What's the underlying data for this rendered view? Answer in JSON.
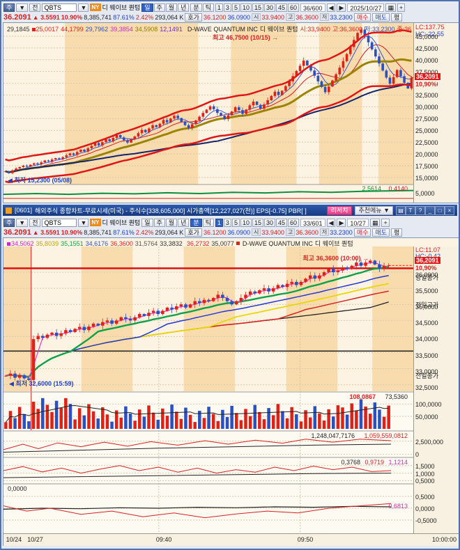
{
  "colors": {
    "up": "#dd2218",
    "down": "#2b50c0",
    "band": "#f8dcae",
    "base": "#fdf3e2",
    "axis_bg": "#f8f0e0"
  },
  "stock": {
    "code": "QBTS",
    "name_kr": "디 웨이브 퀀텀",
    "name_en": "D-WAVE QUANTUM INC",
    "exchange": "NY",
    "price": "36.2091",
    "arrow": "▲",
    "change": "3.5591",
    "pct": "10.90%",
    "volume": "8,385,741",
    "turnover": "87.61%",
    "rate2": "2.42%",
    "value": "293,064 K",
    "ask": "36.1200",
    "bid": "36.0900",
    "open": "33.9400",
    "high": "36.3600",
    "low": "33.2300"
  },
  "toolbar": {
    "left_btns": [
      "주",
      "▼",
      "전"
    ],
    "periods": [
      "일",
      "주",
      "월",
      "년"
    ],
    "mt": [
      "분",
      "틱"
    ],
    "intervals": [
      "1",
      "3",
      "5",
      "10",
      "15",
      "30",
      "45",
      "60"
    ],
    "hoga": "호가",
    "open_label": "시",
    "high_label": "고",
    "low_label": "저",
    "side_tabs": [
      "매수",
      "매도",
      "평"
    ],
    "top": {
      "count": "36/600",
      "date": "2025/10/27"
    },
    "bottom": {
      "count": "33/601",
      "date": "10/27"
    }
  },
  "titlebar": {
    "id": "[0601]",
    "title": "해외주식 종합차트-무료시세(미국) - 주식수[338,605,000] 시가총액[12,227,027(천)] EPS[-0.75] PBR[ ]",
    "research": "리서치",
    "menu": "추천메뉴",
    "menu_arrow": "▼",
    "icons": [
      "▤",
      "T",
      "?",
      "_",
      "□",
      "×"
    ]
  },
  "chart_data": {
    "daily": {
      "type": "candlestick",
      "header_vals": [
        {
          "t": "29,1845",
          "c": "#333333"
        },
        {
          "t": "25,0017",
          "c": "#dd2218",
          "sq": true
        },
        {
          "t": "44,1799",
          "c": "#dd2218"
        },
        {
          "t": "29,7962",
          "c": "#2b50c0"
        },
        {
          "t": "39,3854",
          "c": "#cc28c8"
        },
        {
          "t": "34,5908",
          "c": "#8f7d00"
        },
        {
          "t": "12,1491",
          "c": "#7030c0"
        }
      ],
      "ohlc": [
        {
          "t": "시:33,9400",
          "c": "#dd2218"
        },
        {
          "t": "고:36,3600",
          "c": "#dd2218"
        },
        {
          "t": "저:33,2300",
          "c": "#2b50c0"
        },
        {
          "t": "종:36,2091",
          "c": "#dd2218"
        }
      ],
      "lc": "LC:137.75",
      "hc": "HC:-22.55",
      "y_range": [
        13.5,
        47.8
      ],
      "ticks": [
        {
          "v": 45,
          "l": "45,0000"
        },
        {
          "v": 42.5,
          "l": "42,5000"
        },
        {
          "v": 40,
          "l": "40,0000"
        },
        {
          "v": 37.5,
          "l": "37,5000"
        },
        {
          "v": 35,
          "l": "35,0000"
        },
        {
          "v": 32.5,
          "l": "32,5000"
        },
        {
          "v": 30,
          "l": "30,0000"
        },
        {
          "v": 27.5,
          "l": "27,5000"
        },
        {
          "v": 25,
          "l": "25,0000"
        },
        {
          "v": 22.5,
          "l": "22,5000"
        },
        {
          "v": 20,
          "l": "20,0000"
        },
        {
          "v": 17.5,
          "l": "17,5000"
        },
        {
          "v": 15,
          "l": "15,0000"
        }
      ],
      "bands": [
        [
          0.15,
          0.475
        ],
        [
          0.555,
          0.715
        ],
        [
          0.77,
          0.875
        ],
        [
          0.915,
          1.0
        ]
      ],
      "closes": [
        16.3,
        15.9,
        16.5,
        16.9,
        17.2,
        17.5,
        17.3,
        17.7,
        18.0,
        17.8,
        18.2,
        18.6,
        18.4,
        18.8,
        19.1,
        18.9,
        19.3,
        19.7,
        20.1,
        19.8,
        20.4,
        20.9,
        20.5,
        21.2,
        21.7,
        22.3,
        21.8,
        22.5,
        23.1,
        22.7,
        23.4,
        24.0,
        23.5,
        22.9,
        22.4,
        23.1,
        23.7,
        24.4,
        25.1,
        24.6,
        25.4,
        26.1,
        25.7,
        26.4,
        27.2,
        26.7,
        27.5,
        28.1,
        27.6,
        26.8,
        26.1,
        25.5,
        26.3,
        27.1,
        27.9,
        28.7,
        29.4,
        30.1,
        29.5,
        28.7,
        28.1,
        27.4,
        28.2,
        29.0,
        29.9,
        29.3,
        28.5,
        29.4,
        30.3,
        31.1,
        30.4,
        29.6,
        30.5,
        31.4,
        32.3,
        33.2,
        32.5,
        33.4,
        34.4,
        35.4,
        36.5,
        37.6,
        38.7,
        39.8,
        38.8,
        37.7,
        36.6,
        35.4,
        34.2,
        33.1,
        34.3,
        35.6,
        36.9,
        38.3,
        39.7,
        41.2,
        42.7,
        44.2,
        45.7,
        46.4,
        45.1,
        43.7,
        42.2,
        40.7,
        39.2,
        37.7,
        36.2,
        34.9,
        36.3,
        37.8,
        36.5,
        35.1,
        33.9,
        36.21
      ],
      "ann_high": "최고 46,7500 (10/15)",
      "ann_low": "최저 15,2300 (05/08)",
      "badge": "36,2091",
      "badge_pct": "10,90%",
      "sub": {
        "v1": "2,5614",
        "v2": "0,4140",
        "tick": "5,0000",
        "line": [
          [
            0,
            0.55
          ],
          [
            0.08,
            0.5
          ],
          [
            0.16,
            0.55
          ],
          [
            0.24,
            0.48
          ],
          [
            0.32,
            0.52
          ],
          [
            0.4,
            0.45
          ],
          [
            0.48,
            0.5
          ],
          [
            0.56,
            0.42
          ],
          [
            0.64,
            0.46
          ],
          [
            0.72,
            0.38
          ],
          [
            0.8,
            0.42
          ],
          [
            0.88,
            0.35
          ],
          [
            1,
            0.3
          ]
        ],
        "line2": [
          [
            0,
            0.82
          ],
          [
            1,
            0.82
          ]
        ]
      }
    },
    "minute": {
      "type": "candlestick",
      "header_vals": [
        {
          "t": "34,5062",
          "c": "#cc28c8",
          "sq": true
        },
        {
          "t": "35,8039",
          "c": "#b8a800"
        },
        {
          "t": "35,1551",
          "c": "#0fa04a"
        },
        {
          "t": "34,6176",
          "c": "#2b50c0"
        },
        {
          "t": "36,3600",
          "c": "#dd2218"
        },
        {
          "t": "31,5764",
          "c": "#555555"
        },
        {
          "t": "33,3832",
          "c": "#333333"
        }
      ],
      "header_vals2": [
        {
          "t": "36,2732",
          "c": "#dd2218"
        },
        {
          "t": "35,0077",
          "c": "#333333"
        }
      ],
      "lc": "LC:11.07",
      "hc": "HC:-0.42",
      "y_range": [
        32.3,
        36.8
      ],
      "ticks": [
        {
          "v": 36,
          "l": "36,0000"
        },
        {
          "v": 35.5,
          "l": "35,5000"
        },
        {
          "v": 35,
          "l": "35,0000"
        },
        {
          "v": 34.5,
          "l": "34,5000"
        },
        {
          "v": 34,
          "l": "34,0000"
        },
        {
          "v": 33.5,
          "l": "33,5000"
        },
        {
          "v": 33,
          "l": "33,0000"
        },
        {
          "v": 32.5,
          "l": "32,5000"
        }
      ],
      "bands": [
        [
          0,
          0.068
        ],
        [
          0.19,
          0.315
        ],
        [
          0.44,
          0.565
        ],
        [
          0.69,
          0.815
        ],
        [
          0.9,
          1.0
        ]
      ],
      "divider_index": 6,
      "closes": [
        32.78,
        32.85,
        32.72,
        32.8,
        32.7,
        32.65,
        33.92,
        34.02,
        33.96,
        34.06,
        34.12,
        34.02,
        34.1,
        34.2,
        34.14,
        34.24,
        34.3,
        34.2,
        34.31,
        34.4,
        34.34,
        34.45,
        34.5,
        34.4,
        34.5,
        34.6,
        34.55,
        34.5,
        34.6,
        34.7,
        34.64,
        34.74,
        34.8,
        34.7,
        34.8,
        34.9,
        34.84,
        34.94,
        35.0,
        34.9,
        35.0,
        35.1,
        35.04,
        35.14,
        35.1,
        35.2,
        35.3,
        35.2,
        35.1,
        35.0,
        35.1,
        35.2,
        35.3,
        35.4,
        35.34,
        35.44,
        35.5,
        35.4,
        35.5,
        35.6,
        35.54,
        35.64,
        35.7,
        35.6,
        35.7,
        35.8,
        35.9,
        35.8,
        35.9,
        36.0,
        36.1,
        36.0,
        36.05,
        36.15,
        36.1,
        36.2,
        36.3,
        36.2,
        36.3,
        36.36,
        36.24,
        36.12,
        36.2,
        36.21
      ],
      "hlines": [
        {
          "v": 36.12,
          "c": "#dd1111",
          "w": 2.5
        },
        {
          "v": 33.55,
          "c": "#222222",
          "w": 1.5
        }
      ],
      "ann_high": "최고 36,3600 (10:00)",
      "ann_low": "최저 32,6000 (15:59)",
      "badge": "36,2091",
      "badge_pct": "10,90%",
      "side_labels": [
        {
          "t": "당일종가",
          "v": 35.9
        },
        {
          "t": "전일고가",
          "v": 35.05
        },
        {
          "t": "전일종가",
          "v": 32.85
        }
      ],
      "volume": {
        "l1": "108,0867",
        "l2": "73,5360",
        "ticks": [
          {
            "f": 0.3,
            "l": "100,0000"
          },
          {
            "f": 0.63,
            "l": "50,0000"
          }
        ]
      },
      "pane2": {
        "l1": "1,248,047,7176",
        "l2": "1,059,559,0812",
        "ticks": [
          {
            "f": 0.38,
            "l": "2,500,000"
          },
          {
            "f": 0.9,
            "l": "0"
          }
        ],
        "red": [
          [
            0,
            0.72
          ],
          [
            0.05,
            0.5
          ],
          [
            0.09,
            0.68
          ],
          [
            0.14,
            0.45
          ],
          [
            0.2,
            0.6
          ],
          [
            0.26,
            0.42
          ],
          [
            0.32,
            0.58
          ],
          [
            0.38,
            0.4
          ],
          [
            0.45,
            0.54
          ],
          [
            0.52,
            0.36
          ],
          [
            0.58,
            0.5
          ],
          [
            0.65,
            0.34
          ],
          [
            0.72,
            0.46
          ],
          [
            0.78,
            0.3
          ],
          [
            0.85,
            0.42
          ],
          [
            0.92,
            0.3
          ],
          [
            1,
            0.36
          ]
        ],
        "black": [
          [
            0,
            0.82
          ],
          [
            0.2,
            0.74
          ],
          [
            0.4,
            0.66
          ],
          [
            0.6,
            0.6
          ],
          [
            0.8,
            0.54
          ],
          [
            1,
            0.5
          ]
        ]
      },
      "pane3": {
        "l1": "0,3768",
        "l2": "0,9719",
        "l3": "1,1214",
        "ticks": [
          {
            "f": 0.3,
            "l": "1,5000"
          },
          {
            "f": 0.6,
            "l": "1,0000"
          },
          {
            "f": 0.9,
            "l": "0,5000"
          }
        ],
        "red": [
          [
            0,
            0.5
          ],
          [
            0.05,
            0.34
          ],
          [
            0.1,
            0.55
          ],
          [
            0.15,
            0.4
          ],
          [
            0.2,
            0.6
          ],
          [
            0.25,
            0.44
          ],
          [
            0.3,
            0.3
          ],
          [
            0.35,
            0.5
          ],
          [
            0.4,
            0.36
          ],
          [
            0.45,
            0.56
          ],
          [
            0.5,
            0.4
          ],
          [
            0.55,
            0.6
          ],
          [
            0.6,
            0.46
          ],
          [
            0.65,
            0.56
          ],
          [
            0.7,
            0.36
          ],
          [
            0.75,
            0.5
          ],
          [
            0.8,
            0.32
          ],
          [
            0.85,
            0.46
          ],
          [
            0.9,
            0.36
          ],
          [
            0.95,
            0.54
          ],
          [
            1,
            0.5
          ]
        ],
        "black": [
          [
            0,
            0.78
          ],
          [
            0.2,
            0.74
          ],
          [
            0.4,
            0.7
          ],
          [
            0.6,
            0.66
          ],
          [
            0.8,
            0.62
          ],
          [
            1,
            0.6
          ]
        ]
      },
      "pane4": {
        "left_val": "0,0000",
        "pink_val": "0,6813",
        "ticks": [
          {
            "f": 0.25,
            "l": "0,5000"
          },
          {
            "f": 0.5,
            "l": "0,0000"
          },
          {
            "f": 0.75,
            "l": "-0,5000"
          }
        ],
        "black": [
          [
            0,
            0.52
          ],
          [
            0.1,
            0.5
          ],
          [
            0.2,
            0.51
          ],
          [
            0.3,
            0.49
          ],
          [
            0.4,
            0.5
          ],
          [
            0.5,
            0.48
          ],
          [
            0.6,
            0.49
          ],
          [
            0.7,
            0.47
          ],
          [
            0.8,
            0.48
          ],
          [
            0.9,
            0.46
          ],
          [
            1,
            0.47
          ]
        ],
        "red": [
          [
            0,
            0.45
          ],
          [
            0.06,
            0.56
          ],
          [
            0.12,
            0.5
          ],
          [
            0.2,
            0.63
          ],
          [
            0.28,
            0.56
          ],
          [
            0.36,
            0.68
          ],
          [
            0.44,
            0.6
          ],
          [
            0.52,
            0.7
          ],
          [
            0.6,
            0.62
          ],
          [
            0.68,
            0.56
          ],
          [
            0.76,
            0.6
          ],
          [
            0.84,
            0.5
          ],
          [
            0.92,
            0.45
          ],
          [
            1,
            0.4
          ]
        ]
      },
      "xlabels": [
        {
          "t": "10/24",
          "f": 0.003
        },
        {
          "t": "10/27",
          "f": 0.058
        },
        {
          "t": "09:40",
          "f": 0.39
        },
        {
          "t": "09:50",
          "f": 0.755
        },
        {
          "t": "10:00:00",
          "f": 1
        }
      ]
    }
  }
}
